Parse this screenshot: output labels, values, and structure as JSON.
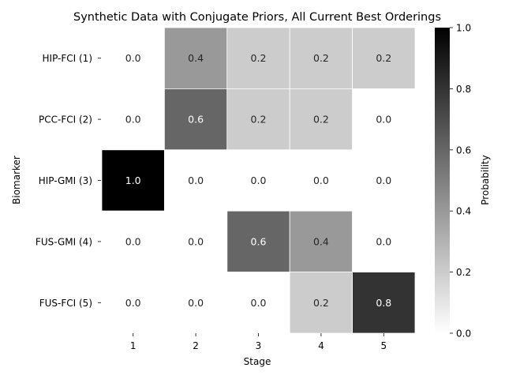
{
  "chart_data": {
    "type": "heatmap",
    "title": "Synthetic Data with Conjugate Priors, All Current Best Orderings",
    "xlabel": "Stage",
    "ylabel": "Biomarker",
    "x_categories": [
      "1",
      "2",
      "3",
      "4",
      "5"
    ],
    "y_categories": [
      "HIP-FCI (1)",
      "PCC-FCI (2)",
      "HIP-GMI (3)",
      "FUS-GMI (4)",
      "FUS-FCI (5)"
    ],
    "values": [
      [
        0.0,
        0.4,
        0.2,
        0.2,
        0.2
      ],
      [
        0.0,
        0.6,
        0.2,
        0.2,
        0.0
      ],
      [
        1.0,
        0.0,
        0.0,
        0.0,
        0.0
      ],
      [
        0.0,
        0.0,
        0.6,
        0.4,
        0.0
      ],
      [
        0.0,
        0.0,
        0.0,
        0.2,
        0.8
      ]
    ],
    "value_labels": [
      [
        "0.0",
        "0.4",
        "0.2",
        "0.2",
        "0.2"
      ],
      [
        "0.0",
        "0.6",
        "0.2",
        "0.2",
        "0.0"
      ],
      [
        "1.0",
        "0.0",
        "0.0",
        "0.0",
        "0.0"
      ],
      [
        "0.0",
        "0.0",
        "0.6",
        "0.4",
        "0.0"
      ],
      [
        "0.0",
        "0.0",
        "0.0",
        "0.2",
        "0.8"
      ]
    ],
    "colormap": "Greys",
    "vmin": 0.0,
    "vmax": 1.0,
    "colorbar": {
      "label": "Probability",
      "ticks": [
        "0.0",
        "0.2",
        "0.4",
        "0.6",
        "0.8",
        "1.0"
      ]
    },
    "grid": false
  }
}
